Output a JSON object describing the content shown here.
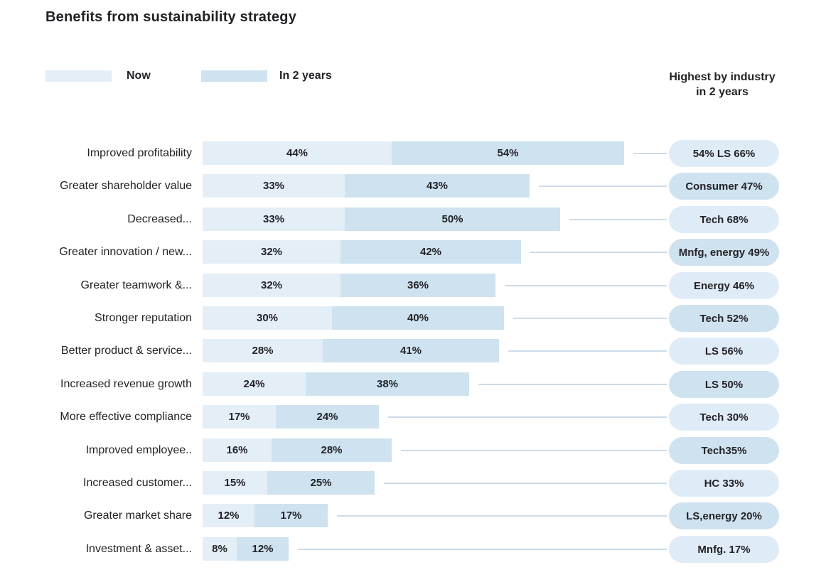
{
  "title": "Benefits from sustainability strategy",
  "legend": {
    "now_label": "Now",
    "future_label": "In 2 years"
  },
  "right_header": {
    "line1": "Highest by industry",
    "line2": "in 2 years"
  },
  "colors": {
    "bar_now": "#e4eef7",
    "bar_future": "#cee2f0",
    "pill_light": "#dfecf8",
    "pill_dark": "#cfe2f0",
    "connector": "#ccdbe9",
    "text": "#232327"
  },
  "chart_data": {
    "type": "bar",
    "orientation": "horizontal-stacked",
    "unit": "%",
    "title": "Benefits from sustainability strategy",
    "series_names": [
      "Now",
      "In 2 years"
    ],
    "legend_position": "top",
    "grid": false,
    "rows": [
      {
        "label": "Improved profitability",
        "now": 44,
        "in_2_years": 54,
        "highest_by_industry": "54% LS 66%",
        "pill_style": "light"
      },
      {
        "label": "Greater shareholder value",
        "now": 33,
        "in_2_years": 43,
        "highest_by_industry": "Consumer 47%",
        "pill_style": "dark"
      },
      {
        "label": "Decreased...",
        "now": 33,
        "in_2_years": 50,
        "highest_by_industry": "Tech 68%",
        "pill_style": "light"
      },
      {
        "label": "Greater innovation / new...",
        "now": 32,
        "in_2_years": 42,
        "highest_by_industry": "Mnfg, energy 49%",
        "pill_style": "dark"
      },
      {
        "label": "Greater teamwork &...",
        "now": 32,
        "in_2_years": 36,
        "highest_by_industry": "Energy 46%",
        "pill_style": "light"
      },
      {
        "label": "Stronger reputation",
        "now": 30,
        "in_2_years": 40,
        "highest_by_industry": "Tech 52%",
        "pill_style": "dark"
      },
      {
        "label": "Better product & service...",
        "now": 28,
        "in_2_years": 41,
        "highest_by_industry": "LS 56%",
        "pill_style": "light"
      },
      {
        "label": "Increased revenue growth",
        "now": 24,
        "in_2_years": 38,
        "highest_by_industry": "LS 50%",
        "pill_style": "dark"
      },
      {
        "label": "More effective compliance",
        "now": 17,
        "in_2_years": 24,
        "highest_by_industry": "Tech 30%",
        "pill_style": "light"
      },
      {
        "label": "Improved employee..",
        "now": 16,
        "in_2_years": 28,
        "highest_by_industry": "Tech35%",
        "pill_style": "dark"
      },
      {
        "label": "Increased customer...",
        "now": 15,
        "in_2_years": 25,
        "highest_by_industry": "HC 33%",
        "pill_style": "light"
      },
      {
        "label": "Greater market share",
        "now": 12,
        "in_2_years": 17,
        "highest_by_industry": "LS,energy 20%",
        "pill_style": "dark"
      },
      {
        "label": "Investment & asset...",
        "now": 8,
        "in_2_years": 12,
        "highest_by_industry": "Mnfg. 17%",
        "pill_style": "light"
      }
    ]
  }
}
